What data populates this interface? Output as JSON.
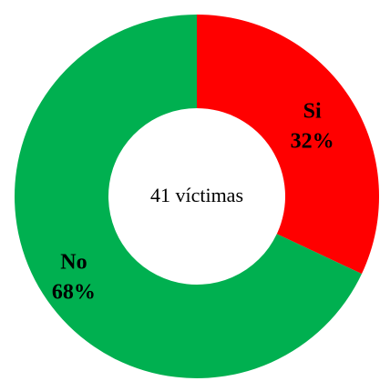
{
  "chart_data": {
    "type": "pie",
    "variant": "donut",
    "center_text": "41 víctimas",
    "slices": [
      {
        "label": "Si",
        "percent": 32,
        "percent_label": "32%",
        "color": "#ff0000"
      },
      {
        "label": "No",
        "percent": 68,
        "percent_label": "68%",
        "color": "#00b050"
      }
    ]
  }
}
